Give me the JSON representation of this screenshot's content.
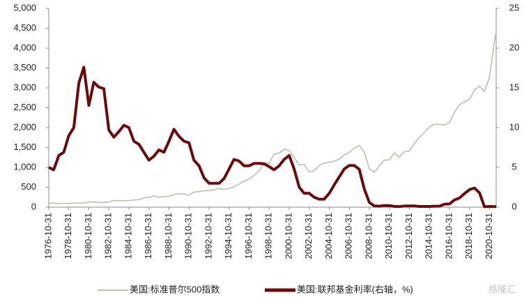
{
  "chart_data": {
    "type": "line",
    "x": [
      "1976-10-31",
      "1977-04-30",
      "1977-10-31",
      "1978-04-30",
      "1978-10-31",
      "1979-04-30",
      "1979-10-31",
      "1980-04-30",
      "1980-10-31",
      "1981-04-30",
      "1981-10-31",
      "1982-04-30",
      "1982-10-31",
      "1983-04-30",
      "1983-10-31",
      "1984-04-30",
      "1984-10-31",
      "1985-04-30",
      "1985-10-31",
      "1986-04-30",
      "1986-10-31",
      "1987-04-30",
      "1987-10-31",
      "1988-04-30",
      "1988-10-31",
      "1989-04-30",
      "1989-10-31",
      "1990-04-30",
      "1990-10-31",
      "1991-04-30",
      "1991-10-31",
      "1992-04-30",
      "1992-10-31",
      "1993-04-30",
      "1993-10-31",
      "1994-04-30",
      "1994-10-31",
      "1995-04-30",
      "1995-10-31",
      "1996-04-30",
      "1996-10-31",
      "1997-04-30",
      "1997-10-31",
      "1998-04-30",
      "1998-10-31",
      "1999-04-30",
      "1999-10-31",
      "2000-04-30",
      "2000-10-31",
      "2001-04-30",
      "2001-10-31",
      "2002-04-30",
      "2002-10-31",
      "2003-04-30",
      "2003-10-31",
      "2004-04-30",
      "2004-10-31",
      "2005-04-30",
      "2005-10-31",
      "2006-04-30",
      "2006-10-31",
      "2007-04-30",
      "2007-10-31",
      "2008-04-30",
      "2008-10-31",
      "2009-04-30",
      "2009-10-31",
      "2010-04-30",
      "2010-10-31",
      "2011-04-30",
      "2011-10-31",
      "2012-04-30",
      "2012-10-31",
      "2013-04-30",
      "2013-10-31",
      "2014-04-30",
      "2014-10-31",
      "2015-04-30",
      "2015-10-31",
      "2016-04-30",
      "2016-10-31",
      "2017-04-30",
      "2017-10-31",
      "2018-04-30",
      "2018-10-31",
      "2019-04-30",
      "2019-10-31",
      "2020-04-30",
      "2020-10-31",
      "2021-04-30",
      "2021-06-30"
    ],
    "series": [
      {
        "name": "美国:标准普尔500指数",
        "color": "#bdbdb0",
        "values": [
          102,
          98,
          92,
          97,
          93,
          101,
          101,
          106,
          127,
          133,
          122,
          116,
          134,
          164,
          163,
          160,
          166,
          179,
          190,
          235,
          243,
          288,
          252,
          261,
          278,
          309,
          340,
          330,
          304,
          375,
          392,
          414,
          418,
          440,
          467,
          450,
          472,
          514,
          581,
          654,
          705,
          801,
          914,
          1111,
          1098,
          1335,
          1362,
          1452,
          1429,
          1249,
          1059,
          1076,
          885,
          916,
          1050,
          1107,
          1130,
          1156,
          1207,
          1310,
          1377,
          1482,
          1549,
          1385,
          968,
          872,
          1036,
          1187,
          1183,
          1363,
          1253,
          1398,
          1412,
          1597,
          1757,
          1884,
          2018,
          2086,
          2079,
          2065,
          2126,
          2384,
          2575,
          2648,
          2711,
          2946,
          3038,
          2912,
          3270,
          4181,
          4400
        ]
      },
      {
        "name": "美国:联邦基金利率(右轴，%)",
        "color": "#6b0a0a",
        "axis": "y2",
        "values": [
          5.0,
          4.7,
          6.5,
          6.9,
          9.0,
          10.0,
          15.6,
          17.6,
          12.8,
          15.7,
          15.1,
          14.9,
          9.7,
          8.8,
          9.5,
          10.3,
          10.0,
          8.3,
          7.9,
          6.9,
          5.9,
          6.4,
          7.2,
          6.9,
          8.3,
          9.8,
          8.9,
          8.3,
          8.1,
          5.9,
          5.2,
          3.7,
          3.0,
          3.0,
          3.0,
          3.6,
          4.8,
          6.0,
          5.8,
          5.2,
          5.2,
          5.5,
          5.5,
          5.45,
          5.1,
          4.7,
          5.2,
          6.0,
          6.5,
          4.8,
          2.5,
          1.75,
          1.75,
          1.25,
          1.0,
          1.0,
          1.75,
          2.8,
          3.8,
          4.8,
          5.25,
          5.25,
          4.75,
          2.3,
          0.6,
          0.15,
          0.12,
          0.2,
          0.19,
          0.1,
          0.07,
          0.14,
          0.16,
          0.15,
          0.09,
          0.09,
          0.09,
          0.12,
          0.12,
          0.37,
          0.4,
          0.9,
          1.15,
          1.7,
          2.2,
          2.4,
          1.8,
          0.05,
          0.09,
          0.07,
          0.08
        ]
      }
    ],
    "xlim": [
      "1976-10-31",
      "2021-06-30"
    ],
    "xticks": [
      "1976-10-31",
      "1978-10-31",
      "1980-10-31",
      "1982-10-31",
      "1984-10-31",
      "1986-10-31",
      "1988-10-31",
      "1990-10-31",
      "1992-10-31",
      "1994-10-31",
      "1996-10-31",
      "1998-10-31",
      "2000-10-31",
      "2002-10-31",
      "2004-10-31",
      "2006-10-31",
      "2008-10-31",
      "2010-10-31",
      "2012-10-31",
      "2014-10-31",
      "2016-10-31",
      "2018-10-31",
      "2020-10-31"
    ],
    "ylim": [
      0,
      5000
    ],
    "yticks": [
      0,
      500,
      {
        "value": 1000,
        "label": "1,000"
      },
      {
        "value": 1500,
        "label": "1,500"
      },
      {
        "value": 2000,
        "label": "2,000"
      },
      {
        "value": 2500,
        "label": "2,500"
      },
      {
        "value": 3000,
        "label": "3,000"
      },
      {
        "value": 3500,
        "label": "3,500"
      },
      {
        "value": 4000,
        "label": "4,000"
      },
      {
        "value": 4500,
        "label": "4,500"
      },
      {
        "value": 5000,
        "label": "5,000"
      }
    ],
    "y2lim": [
      0,
      25
    ],
    "y2ticks": [
      0,
      5,
      10,
      15,
      20,
      25
    ],
    "legend": "bottom",
    "watermark": "格隆汇"
  }
}
